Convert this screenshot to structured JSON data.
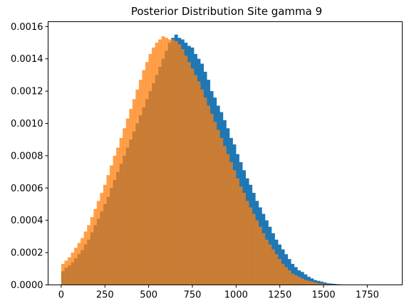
{
  "chart_data": {
    "type": "bar",
    "title": "Posterior Distribution Site gamma 9",
    "xlabel": "",
    "ylabel": "",
    "xlim": [
      -75,
      1950
    ],
    "ylim": [
      0,
      0.00163
    ],
    "xticks": [
      0,
      250,
      500,
      750,
      1000,
      1250,
      1500,
      1750
    ],
    "yticks": [
      0.0,
      0.0002,
      0.0004,
      0.0006,
      0.0008,
      0.001,
      0.0012,
      0.0014,
      0.0016
    ],
    "ytick_labels": [
      "0.0000",
      "0.0002",
      "0.0004",
      "0.0006",
      "0.0008",
      "0.0010",
      "0.0012",
      "0.0014",
      "0.0016"
    ],
    "grid": false,
    "legend": "none",
    "series": [
      {
        "color": "#1f77b4",
        "bin_start": 0,
        "bin_width": 18.5,
        "values": [
          8.5e-05,
          0.000105,
          0.00012,
          0.00014,
          0.000165,
          0.00019,
          0.000215,
          0.00025,
          0.00028,
          0.000325,
          0.00037,
          0.00041,
          0.000455,
          0.0005,
          0.000545,
          0.0006,
          0.00065,
          0.0007,
          0.00075,
          0.0008,
          0.00085,
          0.0009,
          0.00095,
          0.001,
          0.00105,
          0.0011,
          0.00115,
          0.0012,
          0.00125,
          0.0013,
          0.00135,
          0.0014,
          0.00145,
          0.0015,
          0.00153,
          0.00155,
          0.00153,
          0.00152,
          0.0015,
          0.00148,
          0.00147,
          0.00143,
          0.0014,
          0.00137,
          0.00132,
          0.00127,
          0.0012,
          0.00116,
          0.00111,
          0.00107,
          0.00102,
          0.00097,
          0.00091,
          0.00087,
          0.00081,
          0.00076,
          0.00071,
          0.00066,
          0.00062,
          0.00057,
          0.00052,
          0.00048,
          0.00044,
          0.0004,
          0.00036,
          0.00032,
          0.00028,
          0.00025,
          0.00022,
          0.00019,
          0.00016,
          0.00013,
          0.00011,
          9e-05,
          8e-05,
          6.5e-05,
          5e-05,
          4e-05,
          3e-05,
          2.5e-05,
          2e-05,
          1.5e-05,
          1e-05,
          8e-06,
          6e-06,
          4e-06,
          3e-06,
          2e-06,
          2e-06,
          1e-06,
          1e-06,
          1e-06,
          5e-07,
          5e-07,
          5e-07,
          3e-07,
          3e-07,
          2e-07,
          2e-07,
          1e-07,
          1e-07
        ]
      },
      {
        "color": "#ff7f0e",
        "opacity": 0.75,
        "bin_start": 0,
        "bin_width": 18.5,
        "values": [
          0.00013,
          0.00015,
          0.00017,
          0.0002,
          0.00023,
          0.00026,
          0.00029,
          0.00033,
          0.00037,
          0.00042,
          0.00047,
          0.00052,
          0.00057,
          0.00062,
          0.00068,
          0.00074,
          0.0008,
          0.00085,
          0.00091,
          0.00097,
          0.00103,
          0.00109,
          0.00115,
          0.00121,
          0.00127,
          0.00133,
          0.00138,
          0.00143,
          0.00147,
          0.0015,
          0.00152,
          0.00154,
          0.00153,
          0.00152,
          0.00152,
          0.00151,
          0.00149,
          0.00146,
          0.00142,
          0.00138,
          0.00134,
          0.0013,
          0.00126,
          0.00121,
          0.00116,
          0.00111,
          0.00106,
          0.00101,
          0.00096,
          0.00091,
          0.00086,
          0.00081,
          0.00076,
          0.00071,
          0.00066,
          0.00061,
          0.00057,
          0.00052,
          0.00048,
          0.00044,
          0.0004,
          0.00036,
          0.00032,
          0.00028,
          0.00025,
          0.00022,
          0.00019,
          0.00016,
          0.00013,
          0.00011,
          9e-05,
          7e-05,
          6e-05,
          5e-05,
          4e-05,
          3e-05,
          2.5e-05,
          2e-05,
          1.5e-05,
          1e-05,
          8e-06,
          6e-06,
          4e-06
        ]
      }
    ]
  }
}
